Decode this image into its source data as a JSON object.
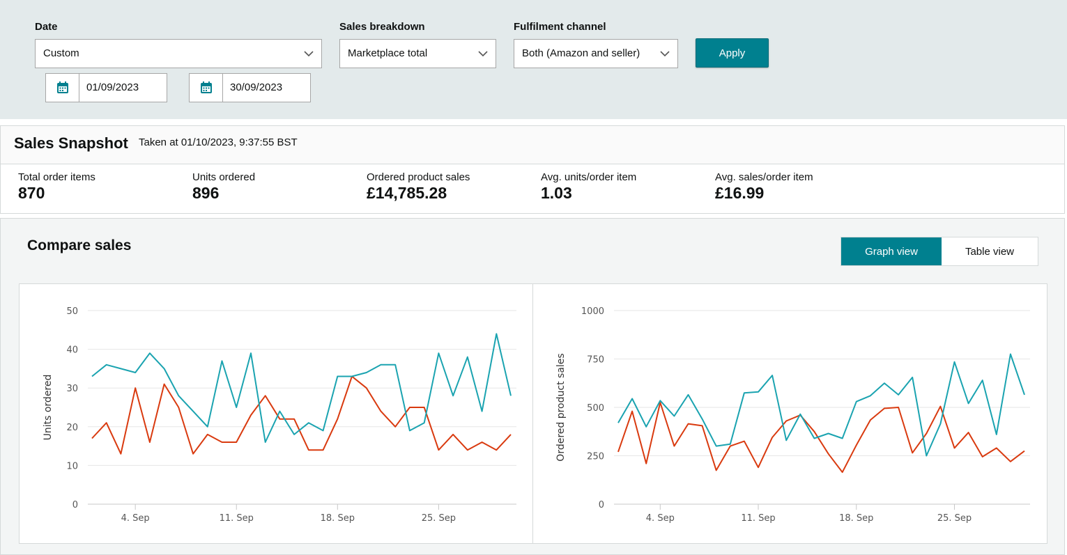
{
  "filters": {
    "date": {
      "label": "Date",
      "value": "Custom",
      "start": "01/09/2023",
      "end": "30/09/2023"
    },
    "sales_breakdown": {
      "label": "Sales breakdown",
      "value": "Marketplace total"
    },
    "fulfilment": {
      "label": "Fulfilment channel",
      "value": "Both (Amazon and seller)"
    },
    "apply_label": "Apply"
  },
  "snapshot": {
    "title": "Sales Snapshot",
    "taken_at": "Taken at 01/10/2023, 9:37:55 BST",
    "metrics": [
      {
        "label": "Total order items",
        "value": "870"
      },
      {
        "label": "Units ordered",
        "value": "896"
      },
      {
        "label": "Ordered product sales",
        "value": "£14,785.28"
      },
      {
        "label": "Avg. units/order item",
        "value": "1.03"
      },
      {
        "label": "Avg. sales/order item",
        "value": "£16.99"
      }
    ]
  },
  "compare": {
    "title": "Compare sales",
    "views": {
      "graph": "Graph view",
      "table": "Table view",
      "active": "graph"
    }
  },
  "colors": {
    "accent": "#00808f",
    "series_primary": "#1aa3b0",
    "series_secondary": "#d93a0f"
  },
  "chart_data": [
    {
      "type": "line",
      "xlabel": "",
      "ylabel": "Units ordered",
      "ylim": [
        0,
        50
      ],
      "yticks": [
        0,
        10,
        20,
        30,
        40,
        50
      ],
      "x": [
        1,
        2,
        3,
        4,
        5,
        6,
        7,
        8,
        9,
        10,
        11,
        12,
        13,
        14,
        15,
        16,
        17,
        18,
        19,
        20,
        21,
        22,
        23,
        24,
        25,
        26,
        27,
        28,
        29,
        30
      ],
      "xtick_labels": [
        {
          "x": 4,
          "label": "4. Sep"
        },
        {
          "x": 11,
          "label": "11. Sep"
        },
        {
          "x": 18,
          "label": "18. Sep"
        },
        {
          "x": 25,
          "label": "25. Sep"
        }
      ],
      "grid": true,
      "series": [
        {
          "color": "#1aa3b0",
          "values": [
            33,
            36,
            35,
            34,
            39,
            35,
            28,
            24,
            20,
            37,
            25,
            39,
            16,
            24,
            18,
            21,
            19,
            33,
            33,
            34,
            36,
            36,
            19,
            21,
            39,
            28,
            38,
            24,
            44,
            28
          ]
        },
        {
          "color": "#d93a0f",
          "values": [
            17,
            21,
            13,
            30,
            16,
            31,
            25,
            13,
            18,
            16,
            16,
            23,
            28,
            22,
            22,
            14,
            14,
            22,
            33,
            30,
            24,
            20,
            25,
            25,
            14,
            18,
            14,
            16,
            14,
            18
          ]
        }
      ]
    },
    {
      "type": "line",
      "xlabel": "",
      "ylabel": "Ordered product sales",
      "ylim": [
        0,
        1000
      ],
      "yticks": [
        0,
        250,
        500,
        750,
        1000
      ],
      "x": [
        1,
        2,
        3,
        4,
        5,
        6,
        7,
        8,
        9,
        10,
        11,
        12,
        13,
        14,
        15,
        16,
        17,
        18,
        19,
        20,
        21,
        22,
        23,
        24,
        25,
        26,
        27,
        28,
        29,
        30
      ],
      "xtick_labels": [
        {
          "x": 4,
          "label": "4. Sep"
        },
        {
          "x": 11,
          "label": "11. Sep"
        },
        {
          "x": 18,
          "label": "18. Sep"
        },
        {
          "x": 25,
          "label": "25. Sep"
        }
      ],
      "grid": true,
      "series": [
        {
          "color": "#1aa3b0",
          "values": [
            420,
            545,
            400,
            535,
            455,
            565,
            440,
            300,
            310,
            575,
            580,
            665,
            330,
            465,
            340,
            365,
            340,
            530,
            560,
            625,
            565,
            655,
            250,
            415,
            735,
            520,
            640,
            360,
            775,
            565
          ]
        },
        {
          "color": "#d93a0f",
          "values": [
            270,
            480,
            210,
            525,
            300,
            415,
            405,
            175,
            300,
            325,
            190,
            345,
            430,
            460,
            375,
            260,
            165,
            305,
            435,
            495,
            500,
            265,
            365,
            505,
            290,
            370,
            245,
            290,
            220,
            275
          ]
        }
      ]
    }
  ]
}
